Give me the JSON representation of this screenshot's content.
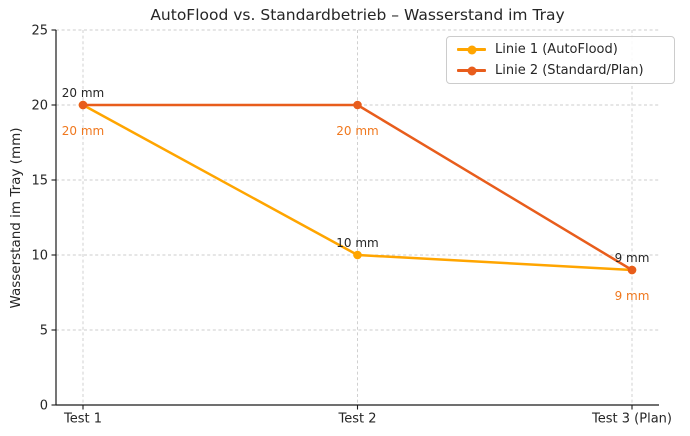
{
  "chart_data": {
    "type": "line",
    "title": "AutoFlood vs. Standardbetrieb – Wasserstand im Tray",
    "xlabel": "",
    "ylabel": "Wasserstand im Tray (mm)",
    "categories": [
      "Test 1",
      "Test 2",
      "Test 3 (Plan)"
    ],
    "series": [
      {
        "name": "Linie 1 (AutoFlood)",
        "values": [
          20,
          10,
          9
        ],
        "color": "#FFA500"
      },
      {
        "name": "Linie 2 (Standard/Plan)",
        "values": [
          20,
          20,
          9
        ],
        "color": "#E85D1C"
      }
    ],
    "ylim": [
      0,
      25
    ],
    "yticks": [
      0,
      5,
      10,
      15,
      20,
      25
    ],
    "grid": true,
    "legend_position": "upper right",
    "annotations": [
      {
        "text": "20 mm",
        "category_index": 0,
        "value": 20,
        "position": "above",
        "color": "#262626"
      },
      {
        "text": "20 mm",
        "category_index": 0,
        "value": 20,
        "position": "below",
        "color": "#F0781E"
      },
      {
        "text": "10 mm",
        "category_index": 1,
        "value": 10,
        "position": "above",
        "color": "#262626"
      },
      {
        "text": "20 mm",
        "category_index": 1,
        "value": 20,
        "position": "below",
        "color": "#F0781E"
      },
      {
        "text": "9 mm",
        "category_index": 2,
        "value": 9,
        "position": "above",
        "color": "#262626"
      },
      {
        "text": "9 mm",
        "category_index": 2,
        "value": 9,
        "position": "below",
        "color": "#F0781E"
      }
    ]
  },
  "colors": {
    "background": "#ffffff",
    "grid": "#cccccc",
    "axis": "#1a1a1a",
    "text": "#262626",
    "legend_border": "#cccccc"
  }
}
